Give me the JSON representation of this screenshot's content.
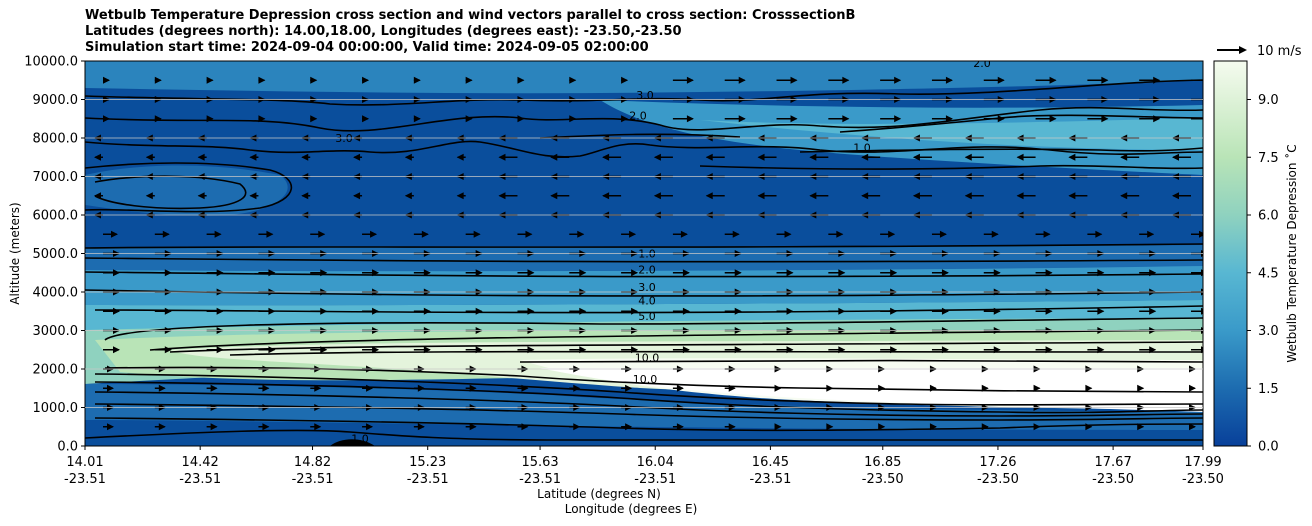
{
  "chart_data": {
    "type": "heatmap",
    "title_lines": [
      "Wetbulb Temperature Depression cross section and wind vectors parallel to cross section: CrosssectionB",
      "Latitudes (degrees north): 14.00,18.00, Longitudes (degrees east): -23.50,-23.50",
      "Simulation start time: 2024-09-04 00:00:00, Valid time: 2024-09-05 02:00:00"
    ],
    "ylabel": "Altitude (meters)",
    "xlabel_1": "Latitude (degrees N)",
    "xlabel_2": "Longitude (degrees E)",
    "ylim": [
      0,
      10000
    ],
    "y_ticks": [
      "0.0",
      "1000.0",
      "2000.0",
      "3000.0",
      "4000.0",
      "5000.0",
      "6000.0",
      "7000.0",
      "8000.0",
      "9000.0",
      "10000.0"
    ],
    "x_ticks": [
      {
        "lat": "14.01",
        "lon": "-23.51"
      },
      {
        "lat": "14.42",
        "lon": "-23.51"
      },
      {
        "lat": "14.82",
        "lon": "-23.51"
      },
      {
        "lat": "15.23",
        "lon": "-23.51"
      },
      {
        "lat": "15.63",
        "lon": "-23.51"
      },
      {
        "lat": "16.04",
        "lon": "-23.51"
      },
      {
        "lat": "16.45",
        "lon": "-23.51"
      },
      {
        "lat": "16.85",
        "lon": "-23.50"
      },
      {
        "lat": "17.26",
        "lon": "-23.50"
      },
      {
        "lat": "17.67",
        "lon": "-23.50"
      },
      {
        "lat": "17.99",
        "lon": "-23.50"
      }
    ],
    "colorbar": {
      "label": "Wetbulb Temperature Depression ˚C",
      "range": [
        0,
        10
      ],
      "ticks": [
        "0.0",
        "1.5",
        "3.0",
        "4.5",
        "6.0",
        "7.5",
        "9.0"
      ]
    },
    "wind_key": "10 m/s",
    "contour_labels": [
      {
        "text": "1.0",
        "alt": 5000
      },
      {
        "text": "2.0",
        "alt": 4580
      },
      {
        "text": "3.0",
        "alt": 4130
      },
      {
        "text": "4.0",
        "alt": 3780
      },
      {
        "text": "5.0",
        "alt": 3380
      },
      {
        "text": "10.0",
        "alt": 2300
      },
      {
        "text": "10.0",
        "alt": 1740
      },
      {
        "text": "3.0",
        "alt": 9120
      },
      {
        "text": "2.0",
        "alt": 8580
      },
      {
        "text": "1.0",
        "alt": 7750
      },
      {
        "text": "2.0",
        "alt": 9950
      },
      {
        "text": "3.0",
        "alt": 8000
      },
      {
        "text": "1.0",
        "alt": 200
      }
    ]
  }
}
